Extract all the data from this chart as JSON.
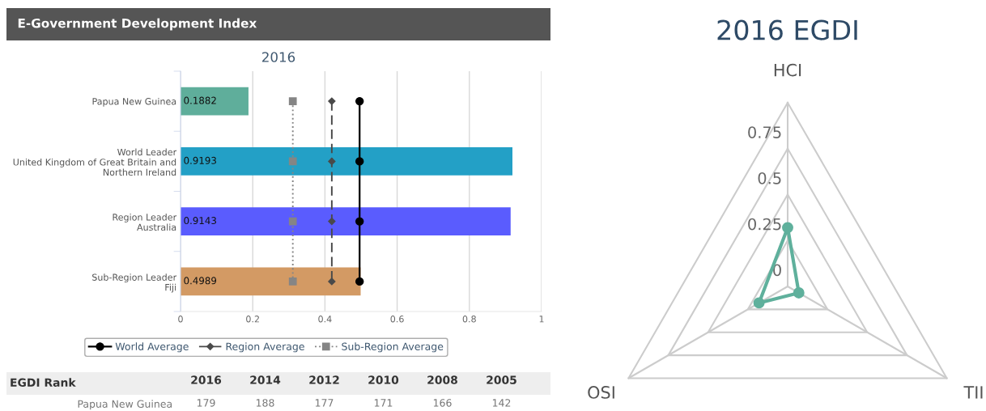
{
  "chart_data": [
    {
      "type": "bar",
      "orientation": "horizontal",
      "title": "E-Government Development Index",
      "subtitle": "2016",
      "categories": [
        "Papua New Guinea",
        "World Leader\nUnited Kingdom of Great Britain and\nNorthern Ireland",
        "Region Leader\nAustralia",
        "Sub-Region Leader\nFiji"
      ],
      "series": [
        {
          "type": "bar",
          "colors": [
            "#5fae9b",
            "#23a0c6",
            "#5a5cfe",
            "#d39a64"
          ],
          "values": [
            0.1882,
            0.9193,
            0.9143,
            0.4989
          ],
          "value_labels": [
            "0.1882",
            "0.9193",
            "0.9143",
            "0.4989"
          ]
        },
        {
          "type": "line",
          "name": "World Average",
          "color": "#000000",
          "marker": "circle",
          "line_style": "solid",
          "values": [
            0.496,
            0.496,
            0.496,
            0.496
          ]
        },
        {
          "type": "line",
          "name": "Region Average",
          "color": "#4a4a4a",
          "marker": "diamond",
          "line_style": "dashed",
          "values": [
            0.419,
            0.419,
            0.419,
            0.419
          ]
        },
        {
          "type": "line",
          "name": "Sub-Region Average",
          "color": "#858585",
          "marker": "square",
          "line_style": "dotted",
          "values": [
            0.311,
            0.311,
            0.311,
            0.311
          ]
        }
      ],
      "xlim": [
        0,
        1
      ],
      "xticks": [
        0,
        0.2,
        0.4,
        0.6,
        0.8,
        1
      ],
      "grid": "x",
      "legend": "bottom"
    },
    {
      "type": "radar",
      "title": "2016 EGDI",
      "categories": [
        "HCI",
        "TII",
        "OSI"
      ],
      "series": [
        {
          "color": "#5fb09c",
          "values": [
            0.32,
            0.07,
            0.18
          ]
        }
      ],
      "ylim": [
        0,
        1
      ],
      "yticks": [
        0,
        0.25,
        0.5,
        0.75
      ],
      "grid": true,
      "marker": "circle"
    },
    {
      "type": "heatmap",
      "title": "EGDI Rank",
      "categories": [
        "2016",
        "2014",
        "2012",
        "2010",
        "2008",
        "2005"
      ],
      "y_categories": [
        "Papua New Guinea"
      ],
      "cells": [
        [
          179,
          188,
          177,
          171,
          166,
          142
        ]
      ],
      "data_labels": true
    }
  ]
}
